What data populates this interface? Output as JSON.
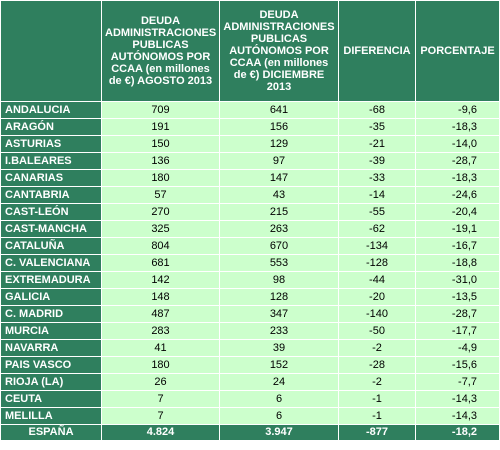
{
  "colors": {
    "header_bg": "#2f7f5e",
    "cell_bg": "#ccffcc",
    "header_text": "#ffffff",
    "cell_text": "#000000"
  },
  "headers": [
    "",
    "DEUDA ADMINISTRACIONES PUBLICAS AUTÓNOMOS POR CCAA (en millones de €) AGOSTO 2013",
    "DEUDA ADMINISTRACIONES PUBLICAS AUTÓNOMOS POR CCAA (en millones de €) DICIEMBRE 2013",
    "DIFERENCIA",
    "PORCENTAJE"
  ],
  "rows": [
    {
      "region": "ANDALUCIA",
      "agosto": "709",
      "diciembre": "641",
      "diferencia": "-68",
      "porcentaje": "-9,6"
    },
    {
      "region": "ARAGÓN",
      "agosto": "191",
      "diciembre": "156",
      "diferencia": "-35",
      "porcentaje": "-18,3"
    },
    {
      "region": "ASTURIAS",
      "agosto": "150",
      "diciembre": "129",
      "diferencia": "-21",
      "porcentaje": "-14,0"
    },
    {
      "region": "I.BALEARES",
      "agosto": "136",
      "diciembre": "97",
      "diferencia": "-39",
      "porcentaje": "-28,7"
    },
    {
      "region": "CANARIAS",
      "agosto": "180",
      "diciembre": "147",
      "diferencia": "-33",
      "porcentaje": "-18,3"
    },
    {
      "region": "CANTABRIA",
      "agosto": "57",
      "diciembre": "43",
      "diferencia": "-14",
      "porcentaje": "-24,6"
    },
    {
      "region": "CAST-LEÓN",
      "agosto": "270",
      "diciembre": "215",
      "diferencia": "-55",
      "porcentaje": "-20,4"
    },
    {
      "region": "CAST-MANCHA",
      "agosto": "325",
      "diciembre": "263",
      "diferencia": "-62",
      "porcentaje": "-19,1"
    },
    {
      "region": "CATALUÑA",
      "agosto": "804",
      "diciembre": "670",
      "diferencia": "-134",
      "porcentaje": "-16,7"
    },
    {
      "region": "C. VALENCIANA",
      "agosto": "681",
      "diciembre": "553",
      "diferencia": "-128",
      "porcentaje": "-18,8"
    },
    {
      "region": "EXTREMADURA",
      "agosto": "142",
      "diciembre": "98",
      "diferencia": "-44",
      "porcentaje": "-31,0"
    },
    {
      "region": "GALICIA",
      "agosto": "148",
      "diciembre": "128",
      "diferencia": "-20",
      "porcentaje": "-13,5"
    },
    {
      "region": "C. MADRID",
      "agosto": "487",
      "diciembre": "347",
      "diferencia": "-140",
      "porcentaje": "-28,7"
    },
    {
      "region": "MURCIA",
      "agosto": "283",
      "diciembre": "233",
      "diferencia": "-50",
      "porcentaje": "-17,7"
    },
    {
      "region": "NAVARRA",
      "agosto": "41",
      "diciembre": "39",
      "diferencia": "-2",
      "porcentaje": "-4,9"
    },
    {
      "region": "PAIS VASCO",
      "agosto": "180",
      "diciembre": "152",
      "diferencia": "-28",
      "porcentaje": "-15,6"
    },
    {
      "region": "RIOJA (LA)",
      "agosto": "26",
      "diciembre": "24",
      "diferencia": "-2",
      "porcentaje": "-7,7"
    },
    {
      "region": "CEUTA",
      "agosto": "7",
      "diciembre": "6",
      "diferencia": "-1",
      "porcentaje": "-14,3"
    },
    {
      "region": "MELILLA",
      "agosto": "7",
      "diciembre": "6",
      "diferencia": "-1",
      "porcentaje": "-14,3"
    }
  ],
  "total": {
    "region": "ESPAÑA",
    "agosto": "4.824",
    "diciembre": "3.947",
    "diferencia": "-877",
    "porcentaje": "-18,2"
  }
}
